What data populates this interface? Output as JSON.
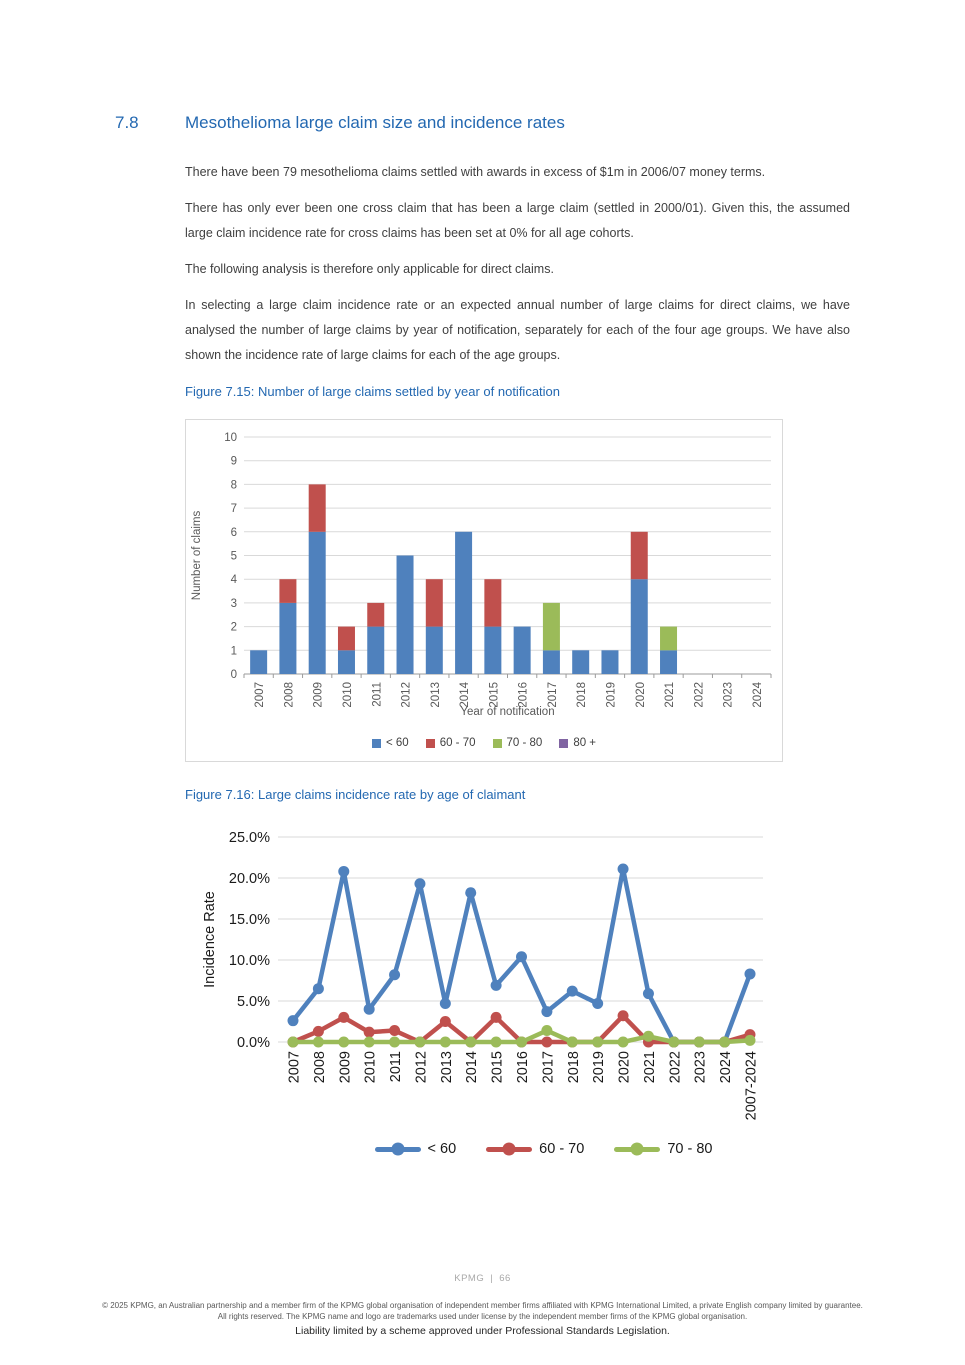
{
  "page": {
    "section_number": "7.8",
    "section_title": "Mesothelioma large claim size and incidence rates",
    "paragraphs": [
      "There have been 79 mesothelioma claims settled with awards in excess of $1m in 2006/07 money terms.",
      "There has only ever been one cross claim that has been a large claim (settled in 2000/01). Given this, the assumed large claim incidence rate for cross claims has been set at 0% for all age cohorts.",
      "The following analysis is therefore only applicable for direct claims.",
      "In selecting a large claim incidence rate or an expected annual number of large claims for direct claims, we have analysed the number of large claims by year of notification, separately for each of the four age groups. We have also shown the incidence rate of large claims for each of the age groups."
    ],
    "figure1_caption": "Figure 7.15: Number of large claims settled by year of notification",
    "figure2_caption": "Figure 7.16: Large claims incidence rate by age of claimant",
    "footer": {
      "brand": "KPMG",
      "separator": "|",
      "page_number": "66",
      "copyright": "© 2025 KPMG, an Australian partnership and a member firm of the KPMG global organisation of independent member firms affiliated with KPMG International Limited, a private English company limited by guarantee. All rights reserved. The KPMG name and logo are trademarks used under license by the independent member firms of the KPMG global organisation.",
      "liability": "Liability limited by a scheme approved under Professional Standards Legislation."
    }
  },
  "colors": {
    "accent_blue": "#2368b1",
    "body_text": "#3f3f3f",
    "chart1_text": "#595959",
    "chart2_text": "#1a1a1a",
    "gridline": "#d9d9d9",
    "axis_line": "#9b9b9b",
    "series_blue": "#4f81bd",
    "series_red": "#c0504d",
    "series_green": "#9bbb59",
    "series_purple": "#8064a2"
  },
  "chart_data": [
    {
      "type": "bar",
      "stacked": true,
      "title": "",
      "xlabel": "Year of notification",
      "ylabel": "Number of claims",
      "ylim": [
        0,
        10
      ],
      "ytick_step": 1,
      "grid": true,
      "legend_position": "bottom",
      "categories": [
        "2007",
        "2008",
        "2009",
        "2010",
        "2011",
        "2012",
        "2013",
        "2014",
        "2015",
        "2016",
        "2017",
        "2018",
        "2019",
        "2020",
        "2021",
        "2022",
        "2023",
        "2024"
      ],
      "series": [
        {
          "name": "< 60",
          "color": "#4f81bd",
          "values": [
            1,
            3,
            6,
            1,
            2,
            5,
            2,
            6,
            2,
            2,
            1,
            1,
            1,
            4,
            1,
            0,
            0,
            0
          ]
        },
        {
          "name": "60 - 70",
          "color": "#c0504d",
          "values": [
            0,
            1,
            2,
            1,
            1,
            0,
            2,
            0,
            2,
            0,
            0,
            0,
            0,
            2,
            0,
            0,
            0,
            0
          ]
        },
        {
          "name": "70 - 80",
          "color": "#9bbb59",
          "values": [
            0,
            0,
            0,
            0,
            0,
            0,
            0,
            0,
            0,
            0,
            2,
            0,
            0,
            0,
            1,
            0,
            0,
            0
          ]
        },
        {
          "name": "80 +",
          "color": "#8064a2",
          "values": [
            0,
            0,
            0,
            0,
            0,
            0,
            0,
            0,
            0,
            0,
            0,
            0,
            0,
            0,
            0,
            0,
            0,
            0
          ]
        }
      ]
    },
    {
      "type": "line",
      "title": "",
      "xlabel": "",
      "ylabel": "Incidence Rate",
      "ylim": [
        0,
        25
      ],
      "ytick_step": 5,
      "ytick_format": "percent1",
      "grid": true,
      "legend_position": "bottom",
      "categories": [
        "2007",
        "2008",
        "2009",
        "2010",
        "2011",
        "2012",
        "2013",
        "2014",
        "2015",
        "2016",
        "2017",
        "2018",
        "2019",
        "2020",
        "2021",
        "2022",
        "2023",
        "2024",
        "2007-2024"
      ],
      "series": [
        {
          "name": "< 60",
          "color": "#4f81bd",
          "values": [
            2.6,
            6.5,
            20.8,
            4.0,
            8.2,
            19.3,
            4.7,
            18.2,
            6.9,
            10.4,
            3.7,
            6.2,
            4.7,
            21.1,
            5.9,
            0.0,
            0.0,
            0.0,
            8.3
          ]
        },
        {
          "name": "60 - 70",
          "color": "#c0504d",
          "values": [
            0.0,
            1.3,
            3.0,
            1.2,
            1.4,
            0.0,
            2.5,
            0.0,
            3.0,
            0.0,
            0.0,
            0.0,
            0.0,
            3.2,
            0.0,
            0.0,
            0.0,
            0.0,
            0.9
          ]
        },
        {
          "name": "70 - 80",
          "color": "#9bbb59",
          "values": [
            0.0,
            0.0,
            0.0,
            0.0,
            0.0,
            0.0,
            0.0,
            0.0,
            0.0,
            0.0,
            1.4,
            0.0,
            0.0,
            0.0,
            0.7,
            0.0,
            0.0,
            0.0,
            0.2
          ]
        }
      ]
    }
  ]
}
